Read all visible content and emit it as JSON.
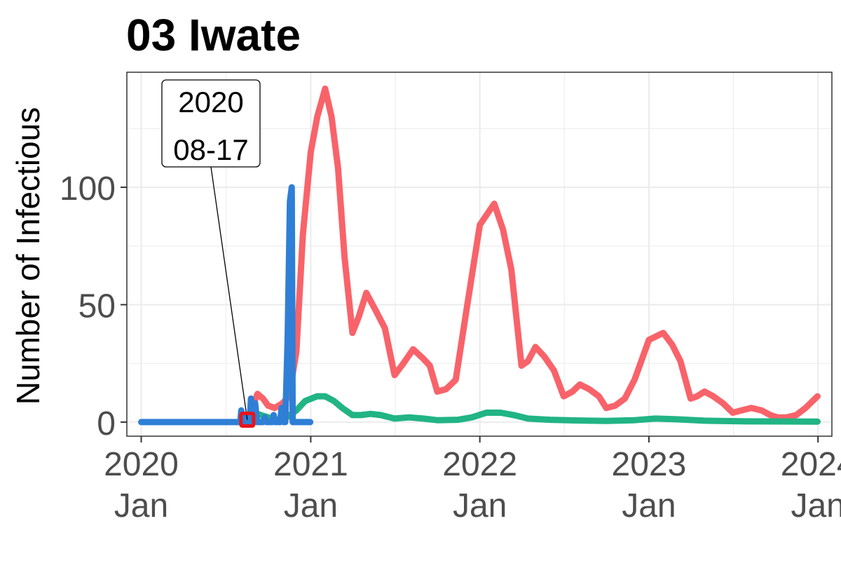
{
  "chart_data": {
    "type": "line",
    "title": "03 Iwate",
    "xlabel": "",
    "ylabel": "Number of Infectious",
    "xlim": [
      "2019-12-01",
      "2024-01-31"
    ],
    "ylim": [
      -6,
      149
    ],
    "grid": true,
    "x_ticks": [
      {
        "date": "2020-01-01",
        "line1": "2020",
        "line2": "Jan"
      },
      {
        "date": "2021-01-01",
        "line1": "2021",
        "line2": "Jan"
      },
      {
        "date": "2022-01-01",
        "line1": "2022",
        "line2": "Jan"
      },
      {
        "date": "2023-01-01",
        "line1": "2023",
        "line2": "Jan"
      },
      {
        "date": "2024-01-01",
        "line1": "2024",
        "line2": "Jan"
      }
    ],
    "y_ticks": [
      0,
      50,
      100
    ],
    "series": [
      {
        "color": "#F8636A",
        "points": [
          [
            "2020-08-17",
            1
          ],
          [
            "2020-08-27",
            6
          ],
          [
            "2020-09-08",
            12
          ],
          [
            "2020-09-20",
            10
          ],
          [
            "2020-10-01",
            7
          ],
          [
            "2020-10-15",
            6
          ],
          [
            "2020-11-01",
            8
          ],
          [
            "2020-11-15",
            11
          ],
          [
            "2020-12-01",
            30
          ],
          [
            "2020-12-15",
            80
          ],
          [
            "2021-01-01",
            115
          ],
          [
            "2021-01-15",
            130
          ],
          [
            "2021-02-01",
            142
          ],
          [
            "2021-02-15",
            130
          ],
          [
            "2021-03-01",
            108
          ],
          [
            "2021-03-15",
            70
          ],
          [
            "2021-04-01",
            38
          ],
          [
            "2021-04-15",
            45
          ],
          [
            "2021-05-01",
            55
          ],
          [
            "2021-05-20",
            48
          ],
          [
            "2021-06-10",
            40
          ],
          [
            "2021-07-01",
            20
          ],
          [
            "2021-07-20",
            25
          ],
          [
            "2021-08-10",
            31
          ],
          [
            "2021-09-01",
            27
          ],
          [
            "2021-09-15",
            24
          ],
          [
            "2021-10-01",
            13
          ],
          [
            "2021-10-20",
            14
          ],
          [
            "2021-11-10",
            18
          ],
          [
            "2021-12-01",
            45
          ],
          [
            "2022-01-01",
            84
          ],
          [
            "2022-02-01",
            93
          ],
          [
            "2022-02-20",
            82
          ],
          [
            "2022-03-10",
            65
          ],
          [
            "2022-04-01",
            24
          ],
          [
            "2022-04-15",
            26
          ],
          [
            "2022-05-01",
            32
          ],
          [
            "2022-05-20",
            28
          ],
          [
            "2022-06-10",
            22
          ],
          [
            "2022-07-01",
            11
          ],
          [
            "2022-07-20",
            13
          ],
          [
            "2022-08-05",
            16
          ],
          [
            "2022-08-25",
            14
          ],
          [
            "2022-09-15",
            11
          ],
          [
            "2022-10-01",
            6
          ],
          [
            "2022-10-20",
            7
          ],
          [
            "2022-11-10",
            10
          ],
          [
            "2022-12-01",
            18
          ],
          [
            "2023-01-01",
            35
          ],
          [
            "2023-02-01",
            38
          ],
          [
            "2023-02-20",
            33
          ],
          [
            "2023-03-10",
            26
          ],
          [
            "2023-04-01",
            10
          ],
          [
            "2023-04-15",
            11
          ],
          [
            "2023-05-01",
            13
          ],
          [
            "2023-05-20",
            11
          ],
          [
            "2023-06-10",
            8
          ],
          [
            "2023-07-01",
            4
          ],
          [
            "2023-07-20",
            5
          ],
          [
            "2023-08-10",
            6
          ],
          [
            "2023-09-01",
            5
          ],
          [
            "2023-09-20",
            3
          ],
          [
            "2023-10-05",
            2
          ],
          [
            "2023-10-25",
            2
          ],
          [
            "2023-11-15",
            3
          ],
          [
            "2023-12-05",
            6
          ],
          [
            "2023-12-31",
            11
          ]
        ]
      },
      {
        "color": "#21B484",
        "points": [
          [
            "2020-08-17",
            1
          ],
          [
            "2020-09-01",
            4
          ],
          [
            "2020-09-15",
            3
          ],
          [
            "2020-10-01",
            2
          ],
          [
            "2020-10-20",
            1
          ],
          [
            "2020-11-10",
            2
          ],
          [
            "2020-12-01",
            5
          ],
          [
            "2020-12-20",
            9
          ],
          [
            "2021-01-15",
            11
          ],
          [
            "2021-02-01",
            11
          ],
          [
            "2021-02-20",
            9
          ],
          [
            "2021-03-10",
            6
          ],
          [
            "2021-04-01",
            3
          ],
          [
            "2021-04-20",
            3
          ],
          [
            "2021-05-10",
            3.5
          ],
          [
            "2021-06-01",
            3
          ],
          [
            "2021-07-01",
            1.5
          ],
          [
            "2021-08-01",
            2
          ],
          [
            "2021-09-01",
            1.5
          ],
          [
            "2021-10-01",
            0.8
          ],
          [
            "2021-11-15",
            1
          ],
          [
            "2021-12-15",
            2
          ],
          [
            "2022-01-15",
            4
          ],
          [
            "2022-02-15",
            4
          ],
          [
            "2022-03-15",
            3
          ],
          [
            "2022-04-15",
            1.5
          ],
          [
            "2022-06-01",
            1
          ],
          [
            "2022-08-01",
            0.7
          ],
          [
            "2022-10-01",
            0.5
          ],
          [
            "2022-12-01",
            0.8
          ],
          [
            "2023-01-15",
            1.5
          ],
          [
            "2023-03-01",
            1.2
          ],
          [
            "2023-05-01",
            0.6
          ],
          [
            "2023-08-01",
            0.3
          ],
          [
            "2023-12-31",
            0.2
          ]
        ]
      },
      {
        "color": "#2F7FD6",
        "points": [
          [
            "2020-01-01",
            0
          ],
          [
            "2020-08-02",
            0
          ],
          [
            "2020-08-04",
            5
          ],
          [
            "2020-08-06",
            0
          ],
          [
            "2020-08-10",
            0
          ],
          [
            "2020-08-12",
            3
          ],
          [
            "2020-08-14",
            0
          ],
          [
            "2020-08-22",
            0
          ],
          [
            "2020-08-25",
            10
          ],
          [
            "2020-08-28",
            3
          ],
          [
            "2020-09-03",
            8
          ],
          [
            "2020-09-07",
            0
          ],
          [
            "2020-09-20",
            0
          ],
          [
            "2020-09-24",
            2
          ],
          [
            "2020-09-28",
            0
          ],
          [
            "2020-10-10",
            0
          ],
          [
            "2020-10-13",
            3
          ],
          [
            "2020-10-16",
            0
          ],
          [
            "2020-10-27",
            0
          ],
          [
            "2020-10-30",
            6
          ],
          [
            "2020-11-03",
            0
          ],
          [
            "2020-11-07",
            0
          ],
          [
            "2020-11-12",
            35
          ],
          [
            "2020-11-17",
            94
          ],
          [
            "2020-11-21",
            100
          ],
          [
            "2020-11-23",
            0
          ],
          [
            "2020-12-31",
            0
          ]
        ]
      }
    ],
    "annotation": {
      "line1": "2020",
      "line2": "08-17",
      "date": "2020-08-17",
      "value": 1,
      "marker_color": "#E8141B"
    }
  }
}
